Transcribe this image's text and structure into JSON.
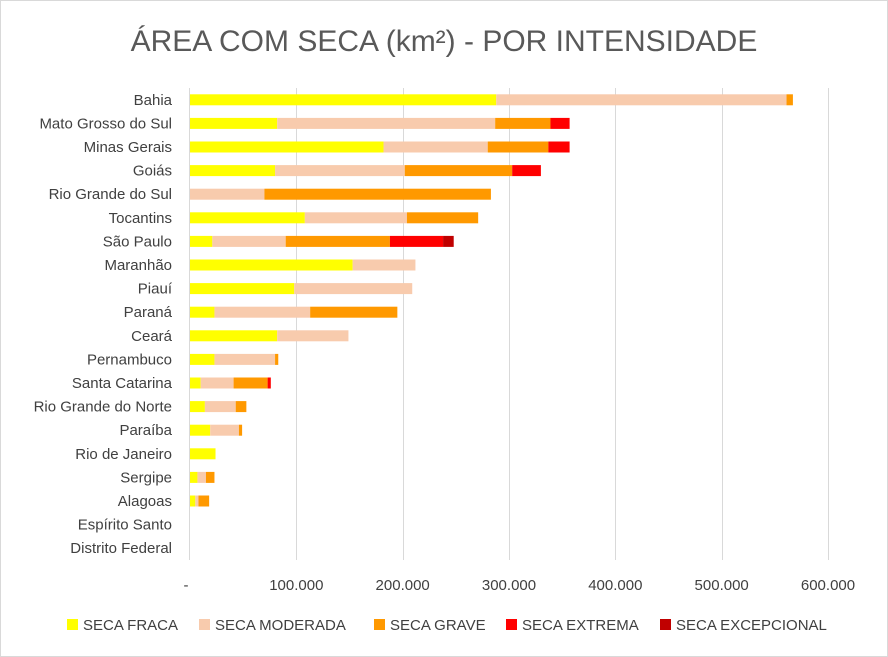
{
  "chart_data": {
    "type": "bar",
    "orientation": "horizontal",
    "stacked": true,
    "title": "ÁREA COM SECA (km²) - POR INTENSIDADE",
    "xlabel": "",
    "ylabel": "",
    "xlim": [
      0,
      600000
    ],
    "xticks": [
      0,
      100000,
      200000,
      300000,
      400000,
      500000,
      600000
    ],
    "xtick_labels": [
      "-",
      "100.000",
      "200.000",
      "300.000",
      "400.000",
      "500.000",
      "600.000"
    ],
    "grid": "vertical",
    "legend_position": "bottom",
    "categories": [
      "Bahia",
      "Mato Grosso do Sul",
      "Minas Gerais",
      "Goiás",
      "Rio Grande do Sul",
      "Tocantins",
      "São Paulo",
      "Maranhão",
      "Piauí",
      "Paraná",
      "Ceará",
      "Pernambuco",
      "Santa Catarina",
      "Rio Grande do Norte",
      "Paraíba",
      "Rio de Janeiro",
      "Sergipe",
      "Alagoas",
      "Espírito Santo",
      "Distrito Federal"
    ],
    "series": [
      {
        "name": "SECA FRACA",
        "color": "#ffff00",
        "values": [
          288000,
          82000,
          182000,
          80000,
          0,
          108000,
          21000,
          153000,
          98000,
          23000,
          82000,
          23000,
          10000,
          14000,
          19000,
          24000,
          7000,
          5000,
          0,
          0
        ]
      },
      {
        "name": "SECA MODERADA",
        "color": "#f8cbad",
        "values": [
          273000,
          205000,
          98000,
          122000,
          70000,
          96000,
          69000,
          59000,
          111000,
          90000,
          67000,
          57000,
          31000,
          29000,
          27000,
          0,
          8000,
          3000,
          0,
          0
        ]
      },
      {
        "name": "SECA GRAVE",
        "color": "#ff9900",
        "values": [
          6000,
          52000,
          57000,
          101000,
          213000,
          67000,
          98000,
          0,
          0,
          82000,
          0,
          3000,
          32000,
          10000,
          3000,
          0,
          8000,
          10000,
          0,
          0
        ]
      },
      {
        "name": "SECA EXTREMA",
        "color": "#ff0000",
        "values": [
          0,
          18000,
          20000,
          27000,
          0,
          0,
          50000,
          0,
          0,
          0,
          0,
          0,
          3000,
          0,
          0,
          0,
          0,
          0,
          0,
          0
        ]
      },
      {
        "name": "SECA EXCEPCIONAL",
        "color": "#c00000",
        "values": [
          0,
          0,
          0,
          0,
          0,
          0,
          10000,
          0,
          0,
          0,
          0,
          0,
          0,
          0,
          0,
          0,
          0,
          0,
          0,
          0
        ]
      }
    ]
  }
}
